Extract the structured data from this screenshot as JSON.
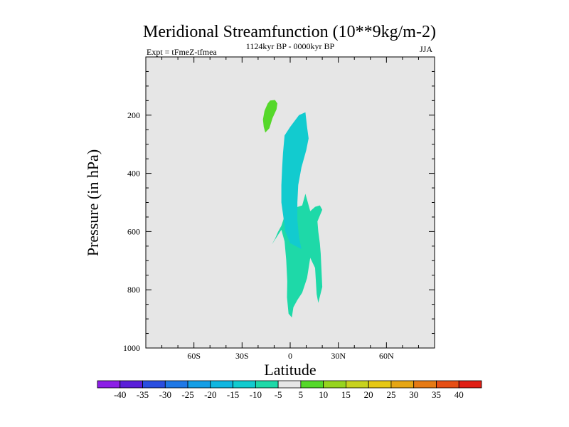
{
  "chart_data": {
    "type": "contour",
    "title": "Meridional Streamfunction (10**9kg/m-2)",
    "subtitle_left": "Expt = tFmeZ-tfmea",
    "subtitle_center": "1124kyr BP - 0000kyr BP",
    "subtitle_right": "JJA",
    "xlabel": "Latitude",
    "ylabel": "Pressure (in hPa)",
    "xlim": [
      -90,
      90
    ],
    "ylim": [
      1000,
      0
    ],
    "x_ticks": [
      {
        "value": -60,
        "label": "60S"
      },
      {
        "value": -30,
        "label": "30S"
      },
      {
        "value": 0,
        "label": "0"
      },
      {
        "value": 30,
        "label": "30N"
      },
      {
        "value": 60,
        "label": "60N"
      }
    ],
    "y_ticks": [
      {
        "value": 200,
        "label": "200"
      },
      {
        "value": 400,
        "label": "400"
      },
      {
        "value": 600,
        "label": "600"
      },
      {
        "value": 800,
        "label": "800"
      },
      {
        "value": 1000,
        "label": "1000"
      }
    ],
    "colorbar": {
      "labels": [
        "-40",
        "-35",
        "-30",
        "-25",
        "-20",
        "-15",
        "-10",
        "-5",
        "5",
        "10",
        "15",
        "20",
        "25",
        "30",
        "35",
        "40"
      ],
      "colors": [
        "#8c1ee6",
        "#5a1fd9",
        "#2a4ee0",
        "#1f78e6",
        "#149ee6",
        "#10b6e0",
        "#12cbcf",
        "#1ed9a8",
        "#e6e6e6",
        "#55d82a",
        "#96d41e",
        "#c8d21e",
        "#e6c814",
        "#e6a614",
        "#e67a14",
        "#e64e14",
        "#e01e14"
      ]
    },
    "regions": [
      {
        "name": "negative -10 to -5 band",
        "color": "#1ed9a8",
        "points": [
          [
            -11.5,
            645
          ],
          [
            -9.5,
            625
          ],
          [
            -7.5,
            600
          ],
          [
            -5.5,
            580
          ],
          [
            -4,
            555
          ],
          [
            2,
            520
          ],
          [
            7.5,
            510
          ],
          [
            9.5,
            470
          ],
          [
            12.5,
            530
          ],
          [
            15.5,
            515
          ],
          [
            18.5,
            510
          ],
          [
            20,
            525
          ],
          [
            17,
            565
          ],
          [
            17.5,
            600
          ],
          [
            18.5,
            640
          ],
          [
            19,
            675
          ],
          [
            20,
            790
          ],
          [
            17.5,
            845
          ],
          [
            16.5,
            815
          ],
          [
            15.5,
            725
          ],
          [
            12.5,
            690
          ],
          [
            10.5,
            760
          ],
          [
            7.5,
            810
          ],
          [
            4.5,
            835
          ],
          [
            2,
            860
          ],
          [
            1,
            895
          ],
          [
            -1,
            882
          ],
          [
            -2,
            826
          ],
          [
            -1.8,
            771
          ],
          [
            -2.5,
            697
          ],
          [
            -3.5,
            634
          ],
          [
            -5.5,
            594
          ]
        ]
      },
      {
        "name": "negative -15 to -10 core",
        "color": "#12cbcf",
        "points": [
          [
            -3.5,
            270
          ],
          [
            0,
            240
          ],
          [
            5.5,
            200
          ],
          [
            9.5,
            190
          ],
          [
            10.5,
            240
          ],
          [
            11.5,
            280
          ],
          [
            10,
            320
          ],
          [
            7,
            380
          ],
          [
            5,
            440
          ],
          [
            4.5,
            500
          ],
          [
            4.5,
            560
          ],
          [
            5.5,
            620
          ],
          [
            7,
            660
          ],
          [
            3.5,
            650
          ],
          [
            0,
            640
          ],
          [
            -3,
            600
          ],
          [
            -4,
            560
          ],
          [
            -5.5,
            500
          ],
          [
            -5.5,
            440
          ],
          [
            -5,
            380
          ],
          [
            -4.5,
            330
          ]
        ]
      },
      {
        "name": "positive 5 to 10 patch",
        "color": "#55d82a",
        "points": [
          [
            -12.5,
            150
          ],
          [
            -9.5,
            148
          ],
          [
            -8,
            160
          ],
          [
            -8.5,
            180
          ],
          [
            -11,
            210
          ],
          [
            -13,
            245
          ],
          [
            -15.5,
            260
          ],
          [
            -16.5,
            240
          ],
          [
            -17,
            215
          ],
          [
            -16,
            185
          ],
          [
            -14,
            160
          ]
        ]
      }
    ]
  }
}
